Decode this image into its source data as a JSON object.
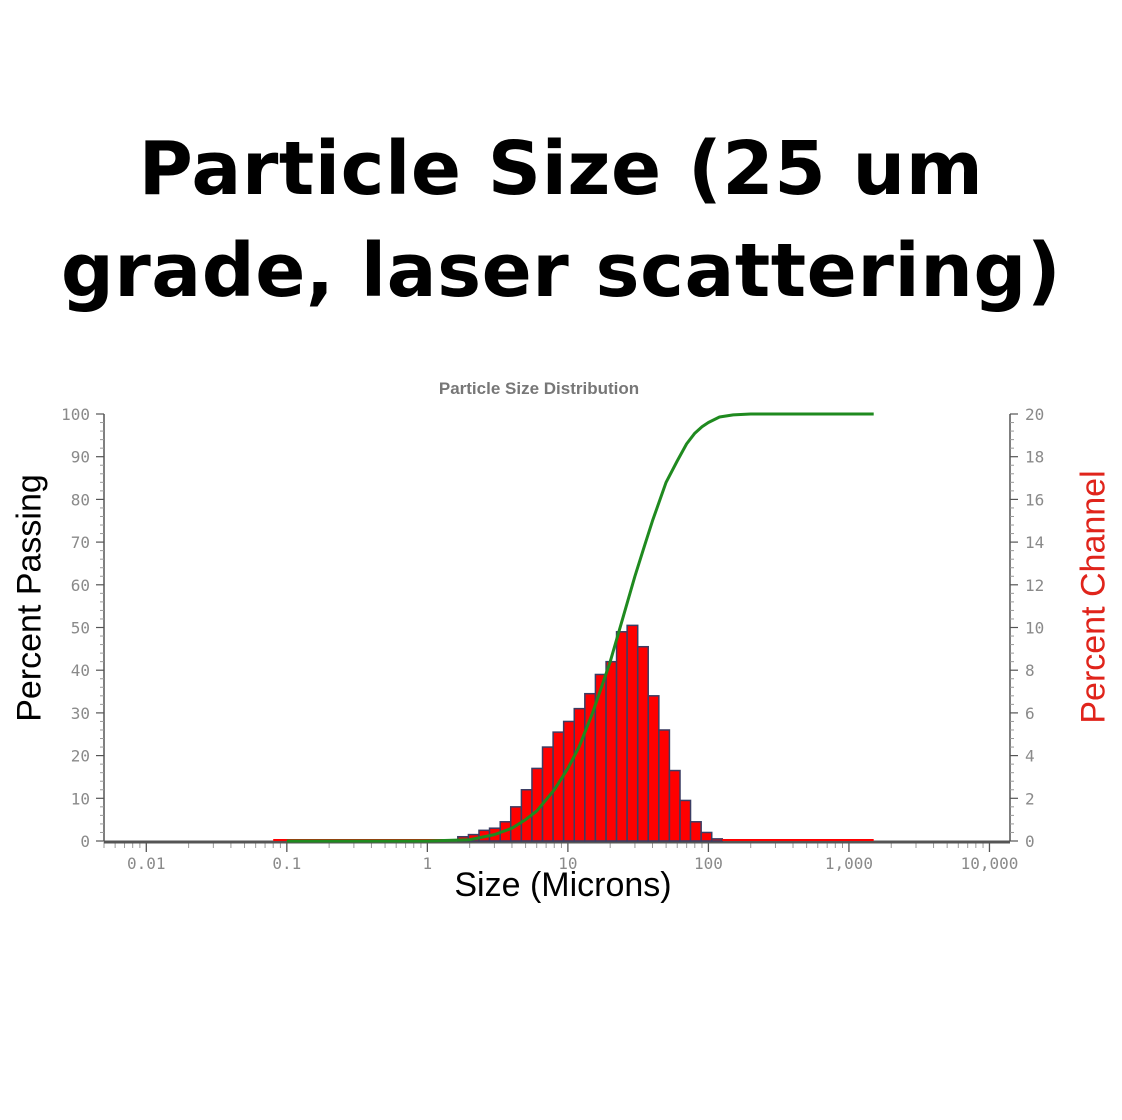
{
  "headline": {
    "line1": "Particle Size (25 um",
    "line2": "grade, laser scattering)"
  },
  "chart_data": {
    "type": "bar",
    "title": "Particle Size Distribution",
    "xlabel": "Size (Microns)",
    "ylabel": "Percent Passing",
    "y2label": "Percent Channel",
    "x_scale": "log",
    "xlim": [
      0.005,
      14000
    ],
    "ylim": [
      0,
      100
    ],
    "y2lim": [
      0,
      20
    ],
    "x_ticks": [
      {
        "value": 0.01,
        "label": "0.01"
      },
      {
        "value": 0.1,
        "label": "0.1"
      },
      {
        "value": 1,
        "label": "1"
      },
      {
        "value": 10,
        "label": "10"
      },
      {
        "value": 100,
        "label": "100"
      },
      {
        "value": 1000,
        "label": "1,000"
      },
      {
        "value": 10000,
        "label": "10,000"
      }
    ],
    "y_ticks": [
      "0",
      "10",
      "20",
      "30",
      "40",
      "50",
      "60",
      "70",
      "80",
      "90",
      "100"
    ],
    "y2_ticks": [
      "0",
      "2",
      "4",
      "6",
      "8",
      "10",
      "12",
      "14",
      "16",
      "18",
      "20"
    ],
    "colors": {
      "bars": "#ff0000",
      "bar_edge": "#3b3d63",
      "cumulative": "#1f8a1f",
      "axis": "#555555",
      "tick_text": "#8a8a8a",
      "title": "#777777",
      "right_label": "#e0241b"
    },
    "series": [
      {
        "name": "Percent Channel",
        "axis": "right",
        "type": "bar",
        "bins": [
          {
            "size": 1.96,
            "value": 0.2
          },
          {
            "size": 2.33,
            "value": 0.3
          },
          {
            "size": 2.77,
            "value": 0.5
          },
          {
            "size": 3.3,
            "value": 0.6
          },
          {
            "size": 3.92,
            "value": 0.9
          },
          {
            "size": 4.67,
            "value": 1.6
          },
          {
            "size": 5.55,
            "value": 2.4
          },
          {
            "size": 6.6,
            "value": 3.4
          },
          {
            "size": 7.85,
            "value": 4.4
          },
          {
            "size": 9.33,
            "value": 5.1
          },
          {
            "size": 11.1,
            "value": 5.6
          },
          {
            "size": 13.2,
            "value": 6.2
          },
          {
            "size": 15.7,
            "value": 6.9
          },
          {
            "size": 18.7,
            "value": 7.8
          },
          {
            "size": 22.2,
            "value": 8.4
          },
          {
            "size": 26.4,
            "value": 9.8
          },
          {
            "size": 31.4,
            "value": 10.1
          },
          {
            "size": 37.3,
            "value": 9.1
          },
          {
            "size": 44.4,
            "value": 6.8
          },
          {
            "size": 52.8,
            "value": 5.2
          },
          {
            "size": 62.8,
            "value": 3.3
          },
          {
            "size": 74.6,
            "value": 1.9
          },
          {
            "size": 88.8,
            "value": 0.9
          },
          {
            "size": 105.6,
            "value": 0.4
          },
          {
            "size": 125.5,
            "value": 0.1
          }
        ]
      },
      {
        "name": "Percent Passing",
        "axis": "left",
        "type": "line",
        "x": [
          0.1,
          1,
          2,
          3,
          4,
          5,
          6,
          8,
          10,
          12,
          15,
          20,
          25,
          30,
          35,
          40,
          50,
          60,
          70,
          80,
          90,
          100,
          120,
          150,
          200,
          1500
        ],
        "y": [
          0,
          0,
          0.3,
          1.5,
          3,
          5,
          7,
          12,
          17,
          22,
          30,
          42,
          53,
          62,
          69,
          75,
          84,
          89,
          93,
          95.5,
          97,
          98,
          99.3,
          99.8,
          100,
          100
        ]
      }
    ]
  }
}
